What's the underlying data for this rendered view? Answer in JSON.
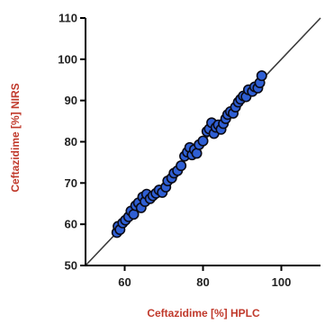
{
  "colors": {
    "axis_title": "#c0392b",
    "point_fill": "#2f5fd4",
    "point_stroke": "#0a0a14",
    "fit_line": "#3a3a3a",
    "axis": "#000000"
  },
  "chart_data": {
    "type": "scatter",
    "xlabel": "Ceftazidime [%] HPLC",
    "ylabel": "Ceftazidime [%] NIRS",
    "xlim": [
      50,
      110
    ],
    "ylim": [
      50,
      110
    ],
    "x_ticks": [
      60,
      80,
      100
    ],
    "y_ticks": [
      50,
      60,
      70,
      80,
      90,
      100,
      110
    ],
    "grid": false,
    "reference_line": {
      "from": [
        50,
        50
      ],
      "to": [
        110,
        110
      ]
    },
    "points": [
      {
        "x": 58.0,
        "y": 58.0
      },
      {
        "x": 58.3,
        "y": 59.5
      },
      {
        "x": 58.8,
        "y": 58.7
      },
      {
        "x": 59.5,
        "y": 60.3
      },
      {
        "x": 60.2,
        "y": 61.0
      },
      {
        "x": 61.0,
        "y": 61.8
      },
      {
        "x": 61.6,
        "y": 63.2
      },
      {
        "x": 62.3,
        "y": 62.4
      },
      {
        "x": 62.8,
        "y": 64.5
      },
      {
        "x": 63.5,
        "y": 65.2
      },
      {
        "x": 64.2,
        "y": 64.0
      },
      {
        "x": 64.6,
        "y": 66.6
      },
      {
        "x": 65.2,
        "y": 65.5
      },
      {
        "x": 65.6,
        "y": 67.3
      },
      {
        "x": 66.5,
        "y": 66.2
      },
      {
        "x": 67.2,
        "y": 66.9
      },
      {
        "x": 68.0,
        "y": 67.5
      },
      {
        "x": 68.8,
        "y": 68.3
      },
      {
        "x": 69.6,
        "y": 67.7
      },
      {
        "x": 70.5,
        "y": 69.0
      },
      {
        "x": 71.0,
        "y": 70.5
      },
      {
        "x": 72.0,
        "y": 71.2
      },
      {
        "x": 72.6,
        "y": 72.4
      },
      {
        "x": 73.5,
        "y": 73.0
      },
      {
        "x": 74.4,
        "y": 74.2
      },
      {
        "x": 75.3,
        "y": 76.5
      },
      {
        "x": 76.0,
        "y": 77.5
      },
      {
        "x": 76.6,
        "y": 78.6
      },
      {
        "x": 77.2,
        "y": 76.8
      },
      {
        "x": 77.8,
        "y": 78.1
      },
      {
        "x": 78.4,
        "y": 77.2
      },
      {
        "x": 79.0,
        "y": 79.3
      },
      {
        "x": 80.0,
        "y": 80.2
      },
      {
        "x": 81.0,
        "y": 82.5
      },
      {
        "x": 81.6,
        "y": 83.1
      },
      {
        "x": 82.2,
        "y": 84.6
      },
      {
        "x": 82.8,
        "y": 82.0
      },
      {
        "x": 83.3,
        "y": 83.5
      },
      {
        "x": 83.9,
        "y": 84.1
      },
      {
        "x": 84.6,
        "y": 83.0
      },
      {
        "x": 85.2,
        "y": 84.4
      },
      {
        "x": 85.8,
        "y": 85.6
      },
      {
        "x": 86.3,
        "y": 86.6
      },
      {
        "x": 87.0,
        "y": 87.3
      },
      {
        "x": 87.7,
        "y": 86.9
      },
      {
        "x": 88.3,
        "y": 88.4
      },
      {
        "x": 89.0,
        "y": 89.6
      },
      {
        "x": 89.6,
        "y": 90.3
      },
      {
        "x": 90.3,
        "y": 91.1
      },
      {
        "x": 91.0,
        "y": 90.9
      },
      {
        "x": 91.6,
        "y": 92.6
      },
      {
        "x": 92.6,
        "y": 92.2
      },
      {
        "x": 93.2,
        "y": 93.3
      },
      {
        "x": 94.0,
        "y": 93.0
      },
      {
        "x": 94.5,
        "y": 94.3
      },
      {
        "x": 95.0,
        "y": 96.0
      }
    ]
  }
}
